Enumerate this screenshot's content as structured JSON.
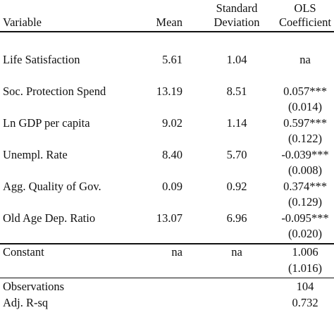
{
  "header": {
    "variable": "Variable",
    "mean": "Mean",
    "sd_line1": "Standard",
    "sd_line2": "Deviation",
    "ols_line1": "OLS",
    "ols_line2": "Coefficient"
  },
  "rows": [
    {
      "variable": "Life Satisfaction",
      "mean": "5.61",
      "sd": "1.04",
      "coef": "na",
      "se": ""
    },
    {
      "variable": "Soc. Protection Spend",
      "mean": "13.19",
      "sd": "8.51",
      "coef": "0.057***",
      "se": "(0.014)"
    },
    {
      "variable": "Ln GDP per capita",
      "mean": "9.02",
      "sd": "1.14",
      "coef": "0.597***",
      "se": "(0.122)"
    },
    {
      "variable": "Unempl. Rate",
      "mean": "8.40",
      "sd": "5.70",
      "coef": "-0.039***",
      "se": "(0.008)"
    },
    {
      "variable": "Agg. Quality of Gov.",
      "mean": "0.09",
      "sd": "0.92",
      "coef": "0.374***",
      "se": "(0.129)"
    },
    {
      "variable": "Old Age Dep. Ratio",
      "mean": "13.07",
      "sd": "6.96",
      "coef": "-0.095***",
      "se": "(0.020)"
    }
  ],
  "constant": {
    "variable": "Constant",
    "mean": "na",
    "sd": "na",
    "coef": "1.006",
    "se": "(1.016)"
  },
  "footer": {
    "observations_label": "Observations",
    "observations_value": "104",
    "adj_rsq_label": "Adj. R-sq",
    "adj_rsq_value": "0.732"
  }
}
